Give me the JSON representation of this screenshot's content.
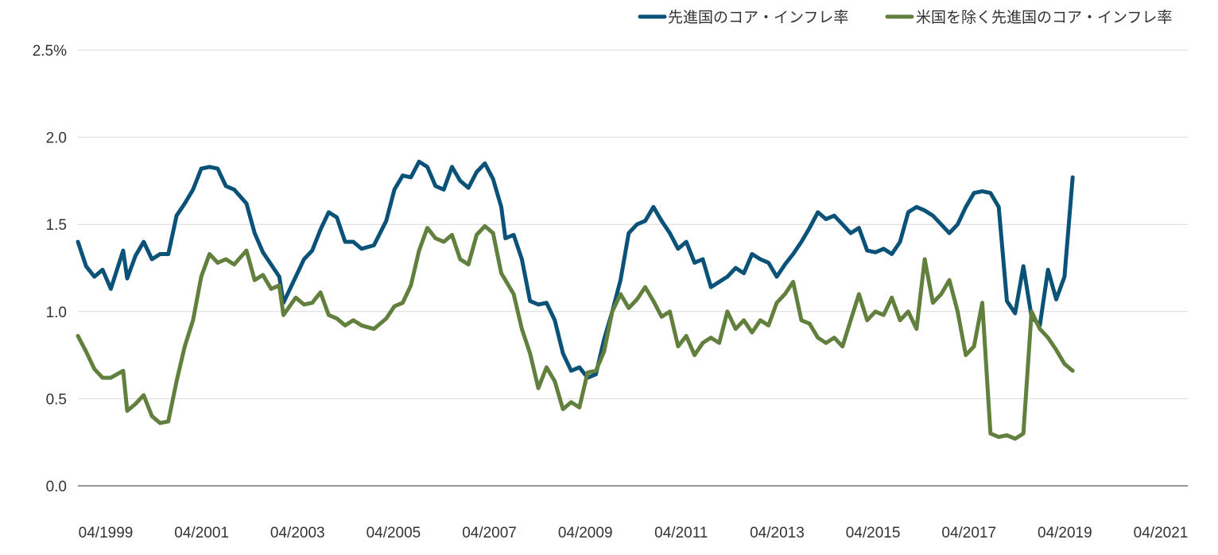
{
  "chart_data": {
    "type": "line",
    "title": "",
    "xlabel": "",
    "ylabel": "",
    "ylim": [
      0,
      2.5
    ],
    "yticks": [
      0,
      0.5,
      1.0,
      1.5,
      2.0,
      2.5
    ],
    "ytick_labels": [
      "0.0",
      "0.5",
      "1.0",
      "1.5",
      "2.0",
      "2.5%"
    ],
    "xlim": [
      "1999-04",
      "2021-10"
    ],
    "xtick_labels": [
      "04/1999",
      "04/2001",
      "04/2003",
      "04/2005",
      "04/2007",
      "04/2009",
      "04/2011",
      "04/2013",
      "04/2015",
      "04/2017",
      "04/2019",
      "04/2021"
    ],
    "grid": "horizontal",
    "legend": "top-right",
    "series": [
      {
        "name": "先進国のコア・インフレ率",
        "color": "#0b5279",
        "points": [
          [
            "1999-04",
            1.4
          ],
          [
            "1999-06",
            1.26
          ],
          [
            "1999-08",
            1.2
          ],
          [
            "1999-10",
            1.24
          ],
          [
            "1999-12",
            1.13
          ],
          [
            "2000-03",
            1.35
          ],
          [
            "2000-04",
            1.19
          ],
          [
            "2000-06",
            1.32
          ],
          [
            "2000-08",
            1.4
          ],
          [
            "2000-10",
            1.3
          ],
          [
            "2000-12",
            1.33
          ],
          [
            "2001-02",
            1.33
          ],
          [
            "2001-04",
            1.55
          ],
          [
            "2001-06",
            1.62
          ],
          [
            "2001-08",
            1.7
          ],
          [
            "2001-10",
            1.82
          ],
          [
            "2001-12",
            1.83
          ],
          [
            "2002-02",
            1.82
          ],
          [
            "2002-04",
            1.72
          ],
          [
            "2002-06",
            1.7
          ],
          [
            "2002-09",
            1.62
          ],
          [
            "2002-11",
            1.45
          ],
          [
            "2003-01",
            1.34
          ],
          [
            "2003-03",
            1.27
          ],
          [
            "2003-05",
            1.2
          ],
          [
            "2003-06",
            1.05
          ],
          [
            "2003-09",
            1.2
          ],
          [
            "2003-11",
            1.3
          ],
          [
            "2004-01",
            1.35
          ],
          [
            "2004-03",
            1.47
          ],
          [
            "2004-05",
            1.57
          ],
          [
            "2004-07",
            1.54
          ],
          [
            "2004-09",
            1.4
          ],
          [
            "2004-11",
            1.4
          ],
          [
            "2005-01",
            1.36
          ],
          [
            "2005-04",
            1.38
          ],
          [
            "2005-07",
            1.52
          ],
          [
            "2005-09",
            1.7
          ],
          [
            "2005-11",
            1.78
          ],
          [
            "2006-01",
            1.77
          ],
          [
            "2006-03",
            1.86
          ],
          [
            "2006-05",
            1.83
          ],
          [
            "2006-07",
            1.72
          ],
          [
            "2006-09",
            1.7
          ],
          [
            "2006-11",
            1.83
          ],
          [
            "2007-01",
            1.75
          ],
          [
            "2007-03",
            1.71
          ],
          [
            "2007-05",
            1.8
          ],
          [
            "2007-07",
            1.85
          ],
          [
            "2007-09",
            1.76
          ],
          [
            "2007-11",
            1.6
          ],
          [
            "2007-12",
            1.42
          ],
          [
            "2008-02",
            1.44
          ],
          [
            "2008-04",
            1.3
          ],
          [
            "2008-06",
            1.06
          ],
          [
            "2008-08",
            1.04
          ],
          [
            "2008-10",
            1.05
          ],
          [
            "2008-12",
            0.95
          ],
          [
            "2009-02",
            0.76
          ],
          [
            "2009-04",
            0.66
          ],
          [
            "2009-06",
            0.68
          ],
          [
            "2009-08",
            0.62
          ],
          [
            "2009-10",
            0.64
          ],
          [
            "2009-12",
            0.84
          ],
          [
            "2010-02",
            1.0
          ],
          [
            "2010-04",
            1.18
          ],
          [
            "2010-06",
            1.45
          ],
          [
            "2010-08",
            1.5
          ],
          [
            "2010-10",
            1.52
          ],
          [
            "2010-12",
            1.6
          ],
          [
            "2011-02",
            1.52
          ],
          [
            "2011-04",
            1.45
          ],
          [
            "2011-06",
            1.36
          ],
          [
            "2011-08",
            1.4
          ],
          [
            "2011-10",
            1.28
          ],
          [
            "2011-12",
            1.3
          ],
          [
            "2012-02",
            1.14
          ],
          [
            "2012-04",
            1.17
          ],
          [
            "2012-06",
            1.2
          ],
          [
            "2012-08",
            1.25
          ],
          [
            "2012-10",
            1.22
          ],
          [
            "2012-12",
            1.33
          ],
          [
            "2013-02",
            1.3
          ],
          [
            "2013-04",
            1.28
          ],
          [
            "2013-06",
            1.2
          ],
          [
            "2013-08",
            1.27
          ],
          [
            "2013-10",
            1.33
          ],
          [
            "2013-12",
            1.4
          ],
          [
            "2014-02",
            1.48
          ],
          [
            "2014-04",
            1.57
          ],
          [
            "2014-06",
            1.53
          ],
          [
            "2014-08",
            1.55
          ],
          [
            "2014-10",
            1.5
          ],
          [
            "2014-12",
            1.45
          ],
          [
            "2015-02",
            1.48
          ],
          [
            "2015-04",
            1.35
          ],
          [
            "2015-06",
            1.34
          ],
          [
            "2015-08",
            1.36
          ],
          [
            "2015-10",
            1.33
          ],
          [
            "2015-12",
            1.4
          ],
          [
            "2016-02",
            1.57
          ],
          [
            "2016-04",
            1.6
          ],
          [
            "2016-06",
            1.58
          ],
          [
            "2016-08",
            1.55
          ],
          [
            "2016-10",
            1.5
          ],
          [
            "2016-12",
            1.45
          ],
          [
            "2017-02",
            1.5
          ],
          [
            "2017-04",
            1.6
          ],
          [
            "2017-06",
            1.68
          ],
          [
            "2017-08",
            1.69
          ],
          [
            "2017-10",
            1.68
          ],
          [
            "2017-12",
            1.6
          ],
          [
            "2018-02",
            1.06
          ],
          [
            "2018-04",
            0.99
          ],
          [
            "2018-06",
            1.26
          ],
          [
            "2018-08",
            0.97
          ],
          [
            "2018-10",
            0.92
          ],
          [
            "2018-12",
            1.24
          ],
          [
            "2019-02",
            1.07
          ],
          [
            "2019-04",
            1.2
          ],
          [
            "2019-06",
            1.77
          ]
        ]
      },
      {
        "name": "米国を除く先進国のコア・インフレ率",
        "color": "#617f3d",
        "points": [
          [
            "1999-04",
            0.86
          ],
          [
            "1999-06",
            0.77
          ],
          [
            "1999-08",
            0.67
          ],
          [
            "1999-10",
            0.62
          ],
          [
            "1999-12",
            0.62
          ],
          [
            "2000-03",
            0.66
          ],
          [
            "2000-04",
            0.43
          ],
          [
            "2000-06",
            0.47
          ],
          [
            "2000-08",
            0.52
          ],
          [
            "2000-10",
            0.4
          ],
          [
            "2000-12",
            0.36
          ],
          [
            "2001-02",
            0.37
          ],
          [
            "2001-04",
            0.6
          ],
          [
            "2001-06",
            0.8
          ],
          [
            "2001-08",
            0.95
          ],
          [
            "2001-10",
            1.2
          ],
          [
            "2001-12",
            1.33
          ],
          [
            "2002-02",
            1.28
          ],
          [
            "2002-04",
            1.3
          ],
          [
            "2002-06",
            1.27
          ],
          [
            "2002-09",
            1.35
          ],
          [
            "2002-11",
            1.18
          ],
          [
            "2003-01",
            1.21
          ],
          [
            "2003-03",
            1.13
          ],
          [
            "2003-05",
            1.15
          ],
          [
            "2003-06",
            0.98
          ],
          [
            "2003-09",
            1.08
          ],
          [
            "2003-11",
            1.04
          ],
          [
            "2004-01",
            1.05
          ],
          [
            "2004-03",
            1.11
          ],
          [
            "2004-05",
            0.98
          ],
          [
            "2004-07",
            0.96
          ],
          [
            "2004-09",
            0.92
          ],
          [
            "2004-11",
            0.95
          ],
          [
            "2005-01",
            0.92
          ],
          [
            "2005-04",
            0.9
          ],
          [
            "2005-07",
            0.96
          ],
          [
            "2005-09",
            1.03
          ],
          [
            "2005-11",
            1.05
          ],
          [
            "2006-01",
            1.15
          ],
          [
            "2006-03",
            1.35
          ],
          [
            "2006-05",
            1.48
          ],
          [
            "2006-07",
            1.42
          ],
          [
            "2006-09",
            1.4
          ],
          [
            "2006-11",
            1.44
          ],
          [
            "2007-01",
            1.3
          ],
          [
            "2007-03",
            1.27
          ],
          [
            "2007-05",
            1.44
          ],
          [
            "2007-07",
            1.49
          ],
          [
            "2007-09",
            1.45
          ],
          [
            "2007-11",
            1.22
          ],
          [
            "2007-12",
            1.18
          ],
          [
            "2008-02",
            1.1
          ],
          [
            "2008-04",
            0.9
          ],
          [
            "2008-06",
            0.76
          ],
          [
            "2008-08",
            0.56
          ],
          [
            "2008-10",
            0.68
          ],
          [
            "2008-12",
            0.6
          ],
          [
            "2009-02",
            0.44
          ],
          [
            "2009-04",
            0.48
          ],
          [
            "2009-06",
            0.45
          ],
          [
            "2009-08",
            0.65
          ],
          [
            "2009-10",
            0.66
          ],
          [
            "2009-12",
            0.77
          ],
          [
            "2010-02",
            1.0
          ],
          [
            "2010-04",
            1.1
          ],
          [
            "2010-06",
            1.02
          ],
          [
            "2010-08",
            1.07
          ],
          [
            "2010-10",
            1.14
          ],
          [
            "2010-12",
            1.06
          ],
          [
            "2011-02",
            0.97
          ],
          [
            "2011-04",
            1.0
          ],
          [
            "2011-06",
            0.8
          ],
          [
            "2011-08",
            0.86
          ],
          [
            "2011-10",
            0.75
          ],
          [
            "2011-12",
            0.82
          ],
          [
            "2012-02",
            0.85
          ],
          [
            "2012-04",
            0.82
          ],
          [
            "2012-06",
            1.0
          ],
          [
            "2012-08",
            0.9
          ],
          [
            "2012-10",
            0.95
          ],
          [
            "2012-12",
            0.88
          ],
          [
            "2013-02",
            0.95
          ],
          [
            "2013-04",
            0.92
          ],
          [
            "2013-06",
            1.05
          ],
          [
            "2013-08",
            1.1
          ],
          [
            "2013-10",
            1.17
          ],
          [
            "2013-12",
            0.95
          ],
          [
            "2014-02",
            0.93
          ],
          [
            "2014-04",
            0.85
          ],
          [
            "2014-06",
            0.82
          ],
          [
            "2014-08",
            0.85
          ],
          [
            "2014-10",
            0.8
          ],
          [
            "2014-12",
            0.95
          ],
          [
            "2015-02",
            1.1
          ],
          [
            "2015-04",
            0.95
          ],
          [
            "2015-06",
            1.0
          ],
          [
            "2015-08",
            0.98
          ],
          [
            "2015-10",
            1.08
          ],
          [
            "2015-12",
            0.95
          ],
          [
            "2016-02",
            1.0
          ],
          [
            "2016-04",
            0.9
          ],
          [
            "2016-06",
            1.3
          ],
          [
            "2016-08",
            1.05
          ],
          [
            "2016-10",
            1.1
          ],
          [
            "2016-12",
            1.18
          ],
          [
            "2017-02",
            1.0
          ],
          [
            "2017-04",
            0.75
          ],
          [
            "2017-06",
            0.8
          ],
          [
            "2017-08",
            1.05
          ],
          [
            "2017-10",
            0.3
          ],
          [
            "2017-12",
            0.28
          ],
          [
            "2018-02",
            0.29
          ],
          [
            "2018-04",
            0.27
          ],
          [
            "2018-06",
            0.3
          ],
          [
            "2018-08",
            1.0
          ],
          [
            "2018-10",
            0.9
          ],
          [
            "2018-12",
            0.85
          ],
          [
            "2019-02",
            0.78
          ],
          [
            "2019-04",
            0.7
          ],
          [
            "2019-06",
            0.66
          ]
        ]
      }
    ]
  }
}
